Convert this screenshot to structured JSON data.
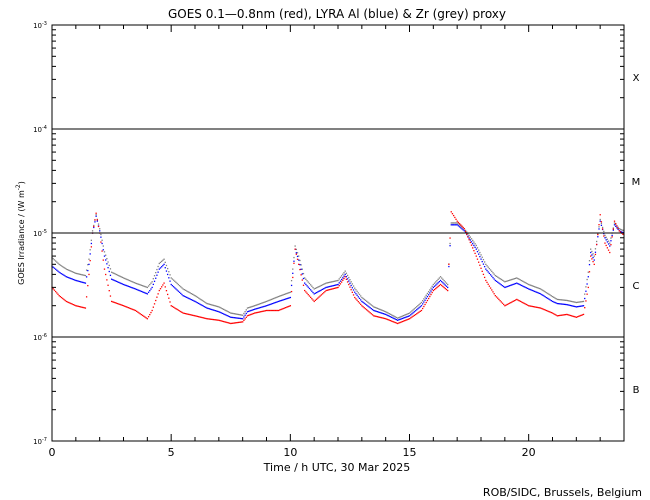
{
  "chart_data": {
    "type": "scatter",
    "title": "GOES 0.1—0.8nm (red), LYRA Al (blue) & Zr (grey) proxy",
    "xlabel": "Time / h UTC, 30 Mar 2025",
    "ylabel": "GOES Irradiance / (W m",
    "ylabel_exp": "-2",
    "ylabel_close": ")",
    "xlim": [
      0,
      24
    ],
    "ylim": [
      1e-07,
      0.001
    ],
    "yscale": "log",
    "x_ticks": [
      0,
      5,
      10,
      15,
      20
    ],
    "y_ticks": [
      {
        "mant": "10",
        "exp": "-3",
        "value": 0.001
      },
      {
        "mant": "10",
        "exp": "-4",
        "value": 0.0001
      },
      {
        "mant": "10",
        "exp": "-5",
        "value": 1e-05
      },
      {
        "mant": "10",
        "exp": "-6",
        "value": 1e-06
      },
      {
        "mant": "10",
        "exp": "-7",
        "value": 1e-07
      }
    ],
    "class_lines": [
      0.0001,
      1e-05,
      1e-06
    ],
    "flare_classes": [
      {
        "label": "X",
        "value": 0.000316
      },
      {
        "label": "M",
        "value": 3.16e-05
      },
      {
        "label": "C",
        "value": 3.16e-06
      },
      {
        "label": "B",
        "value": 3.16e-07
      }
    ],
    "credit": "ROB/SIDC, Brussels, Belgium",
    "grid": false,
    "series": [
      {
        "name": "GOES 0.1-0.8nm",
        "color": "#ff0000",
        "x": [
          0,
          0.3,
          0.6,
          1.0,
          1.4,
          1.55,
          1.7,
          1.85,
          2.0,
          2.2,
          2.5,
          3.0,
          3.5,
          4.0,
          4.2,
          4.5,
          4.7,
          5.0,
          5.5,
          6.0,
          6.5,
          7.0,
          7.5,
          8.0,
          8.2,
          8.5,
          9.0,
          9.5,
          10.0,
          10.2,
          10.35,
          10.6,
          11.0,
          11.5,
          12.0,
          12.3,
          12.7,
          13.0,
          13.5,
          14.0,
          14.5,
          15.0,
          15.5,
          16.0,
          16.3,
          16.6,
          16.75,
          17.0,
          17.3,
          17.8,
          18.2,
          18.6,
          19.0,
          19.5,
          20.0,
          20.5,
          21.0,
          21.2,
          21.6,
          22.0,
          22.3,
          22.5,
          22.6,
          22.75,
          23.0,
          23.2,
          23.4,
          23.6,
          23.8,
          24.0
        ],
        "y": [
          3e-06,
          2.5e-06,
          2.2e-06,
          2e-06,
          1.9e-06,
          4e-06,
          1e-05,
          1.55e-05,
          1e-05,
          4.5e-06,
          2.2e-06,
          2e-06,
          1.8e-06,
          1.5e-06,
          1.8e-06,
          2.8e-06,
          3.3e-06,
          2e-06,
          1.7e-06,
          1.6e-06,
          1.5e-06,
          1.45e-06,
          1.35e-06,
          1.4e-06,
          1.6e-06,
          1.7e-06,
          1.8e-06,
          1.8e-06,
          2e-06,
          7e-06,
          5e-06,
          2.8e-06,
          2.2e-06,
          2.8e-06,
          3e-06,
          3.8e-06,
          2.4e-06,
          2e-06,
          1.6e-06,
          1.5e-06,
          1.35e-06,
          1.5e-06,
          1.8e-06,
          2.8e-06,
          3.2e-06,
          2.8e-06,
          1.6e-05,
          1.3e-05,
          1.1e-05,
          6e-06,
          3.5e-06,
          2.5e-06,
          2e-06,
          2.3e-06,
          2e-06,
          1.9e-06,
          1.7e-06,
          1.6e-06,
          1.65e-06,
          1.55e-06,
          1.65e-06,
          3e-06,
          6e-06,
          5e-06,
          1.5e-05,
          8e-06,
          6.5e-06,
          1.3e-05,
          1.05e-05,
          9.5e-06
        ]
      },
      {
        "name": "LYRA Al",
        "color": "#0000ff",
        "x": [
          0,
          0.3,
          0.6,
          1.0,
          1.4,
          1.55,
          1.7,
          1.85,
          2.0,
          2.2,
          2.5,
          3.0,
          3.5,
          4.0,
          4.2,
          4.5,
          4.7,
          5.0,
          5.5,
          6.0,
          6.5,
          7.0,
          7.5,
          8.0,
          8.2,
          8.5,
          9.0,
          9.5,
          10.0,
          10.2,
          10.35,
          10.6,
          11.0,
          11.5,
          12.0,
          12.3,
          12.7,
          13.0,
          13.5,
          14.0,
          14.5,
          15.0,
          15.5,
          16.0,
          16.3,
          16.6,
          16.75,
          17.0,
          17.3,
          17.8,
          18.2,
          18.6,
          19.0,
          19.5,
          20.0,
          20.5,
          21.0,
          21.2,
          21.6,
          22.0,
          22.3,
          22.5,
          22.6,
          22.75,
          23.0,
          23.2,
          23.4,
          23.6,
          23.8,
          24.0
        ],
        "y": [
          4.8e-06,
          4.2e-06,
          3.8e-06,
          3.5e-06,
          3.3e-06,
          5e-06,
          1e-05,
          1.45e-05,
          1.05e-05,
          6e-06,
          3.6e-06,
          3.2e-06,
          2.9e-06,
          2.6e-06,
          3e-06,
          4.5e-06,
          5e-06,
          3.2e-06,
          2.5e-06,
          2.2e-06,
          1.9e-06,
          1.75e-06,
          1.55e-06,
          1.5e-06,
          1.75e-06,
          1.85e-06,
          2e-06,
          2.2e-06,
          2.4e-06,
          7e-06,
          5.5e-06,
          3.3e-06,
          2.6e-06,
          3e-06,
          3.2e-06,
          4e-06,
          2.7e-06,
          2.2e-06,
          1.8e-06,
          1.65e-06,
          1.45e-06,
          1.6e-06,
          2e-06,
          3e-06,
          3.5e-06,
          3e-06,
          1.2e-05,
          1.2e-05,
          1.05e-05,
          7e-06,
          4.5e-06,
          3.5e-06,
          3e-06,
          3.3e-06,
          2.9e-06,
          2.6e-06,
          2.2e-06,
          2.1e-06,
          2.05e-06,
          1.95e-06,
          2e-06,
          3.8e-06,
          6.5e-06,
          5.5e-06,
          1.3e-05,
          9e-06,
          7.5e-06,
          1.2e-05,
          1.05e-05,
          1e-05
        ]
      },
      {
        "name": "LYRA Zr",
        "color": "#808080",
        "x": [
          0,
          0.3,
          0.6,
          1.0,
          1.4,
          1.55,
          1.7,
          1.85,
          2.0,
          2.2,
          2.5,
          3.0,
          3.5,
          4.0,
          4.2,
          4.5,
          4.7,
          5.0,
          5.5,
          6.0,
          6.5,
          7.0,
          7.5,
          8.0,
          8.2,
          8.5,
          9.0,
          9.5,
          10.0,
          10.2,
          10.35,
          10.6,
          11.0,
          11.5,
          12.0,
          12.3,
          12.7,
          13.0,
          13.5,
          14.0,
          14.5,
          15.0,
          15.5,
          16.0,
          16.3,
          16.6,
          16.75,
          17.0,
          17.3,
          17.8,
          18.2,
          18.6,
          19.0,
          19.5,
          20.0,
          20.5,
          21.0,
          21.2,
          21.6,
          22.0,
          22.3,
          22.5,
          22.6,
          22.75,
          23.0,
          23.2,
          23.4,
          23.6,
          23.8,
          24.0
        ],
        "y": [
          5.8e-06,
          5e-06,
          4.5e-06,
          4.1e-06,
          3.9e-06,
          5.6e-06,
          1.05e-05,
          1.5e-05,
          1.1e-05,
          6.6e-06,
          4.2e-06,
          3.7e-06,
          3.3e-06,
          3e-06,
          3.4e-06,
          5.1e-06,
          5.6e-06,
          3.7e-06,
          2.9e-06,
          2.5e-06,
          2.1e-06,
          1.95e-06,
          1.7e-06,
          1.62e-06,
          1.9e-06,
          2e-06,
          2.2e-06,
          2.45e-06,
          2.7e-06,
          7.5e-06,
          6e-06,
          3.7e-06,
          2.9e-06,
          3.3e-06,
          3.5e-06,
          4.3e-06,
          2.95e-06,
          2.4e-06,
          1.95e-06,
          1.75e-06,
          1.52e-06,
          1.7e-06,
          2.15e-06,
          3.2e-06,
          3.8e-06,
          3.2e-06,
          1.25e-05,
          1.25e-05,
          1.1e-05,
          7.6e-06,
          5e-06,
          3.9e-06,
          3.4e-06,
          3.7e-06,
          3.2e-06,
          2.9e-06,
          2.45e-06,
          2.3e-06,
          2.25e-06,
          2.15e-06,
          2.2e-06,
          4.2e-06,
          7e-06,
          6e-06,
          1.35e-05,
          9.5e-06,
          8e-06,
          1.25e-05,
          1.1e-05,
          1.05e-05
        ]
      }
    ]
  }
}
